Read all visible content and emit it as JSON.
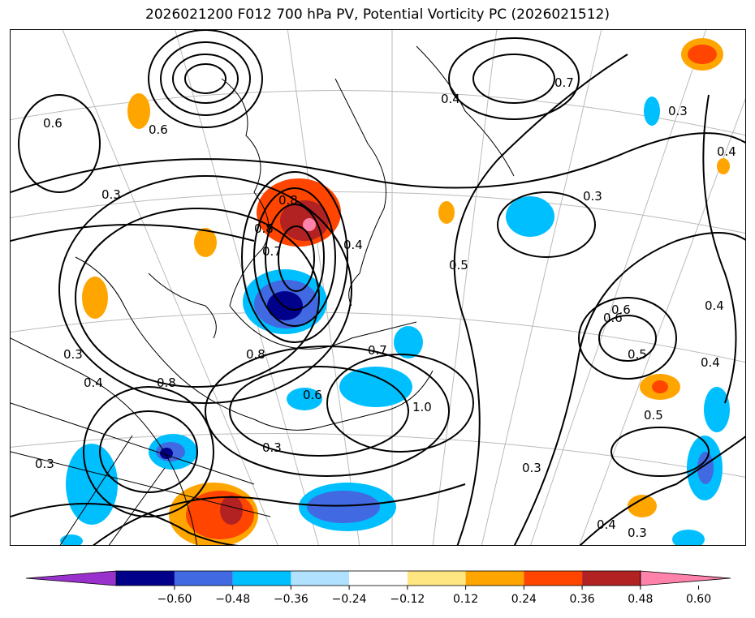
{
  "title": "2026021200 F012 700 hPa PV, Potential Vorticity PC (2026021512)",
  "colorbar": {
    "ticks": [
      "−0.60",
      "−0.48",
      "−0.36",
      "−0.24",
      "−0.12",
      "0.12",
      "0.24",
      "0.36",
      "0.48",
      "0.60"
    ],
    "colors": [
      "#9932cc",
      "#00008b",
      "#4169e1",
      "#00bfff",
      "#b0e2ff",
      "#ffffff",
      "#ffe680",
      "#ffa500",
      "#ff4500",
      "#b22222",
      "#ff82ab"
    ],
    "extend": "both"
  },
  "contour_labels": [
    "0.6",
    "0.3",
    "0.8",
    "0.8",
    "0.7",
    "0.4",
    "0.5",
    "0.3",
    "0.3",
    "0.4",
    "0.6",
    "0.8",
    "0.3",
    "0.4",
    "0.8",
    "0.6",
    "0.7",
    "1.0",
    "0.5",
    "0.6",
    "0.5",
    "0.4",
    "0.4",
    "0.4",
    "0.3",
    "0.3",
    "0.4",
    "0.6",
    "0.3",
    "0.7",
    "0.3"
  ]
}
